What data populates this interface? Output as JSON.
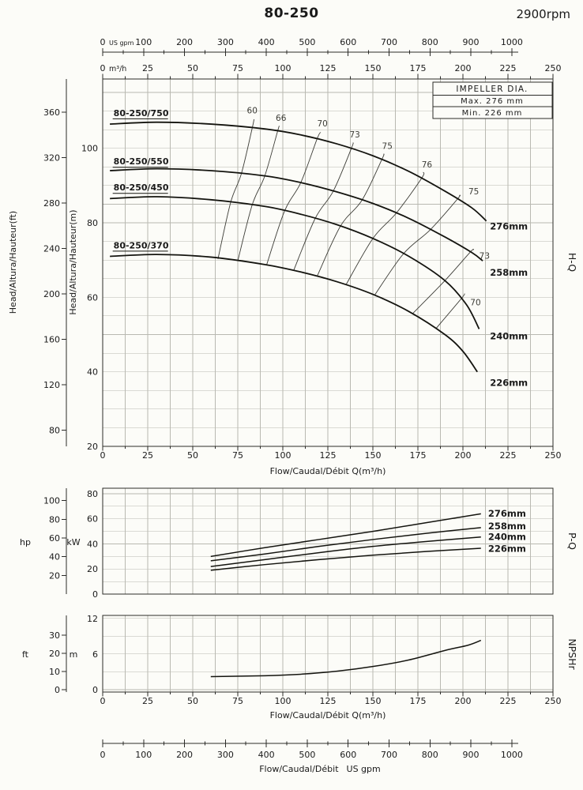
{
  "header": {
    "title": "80-250",
    "rpm": "2900rpm"
  },
  "impeller_box": {
    "title": "IMPELLER DIA.",
    "max": "Max. 276 mm",
    "min": "Min. 226 mm"
  },
  "section_labels": {
    "hq": "H-Q",
    "pq": "P-Q",
    "npsh": "NPSHr"
  },
  "top_axis": {
    "gpm": {
      "unit": "US gpm",
      "ticks": [
        0,
        100,
        200,
        300,
        400,
        500,
        600,
        700,
        800,
        900,
        1000
      ],
      "minor_step": 50
    },
    "m3h": {
      "unit": "m³/h",
      "ticks": [
        0,
        25,
        50,
        75,
        100,
        125,
        150,
        175,
        200,
        225,
        250
      ],
      "minor_step": 12.5
    }
  },
  "bottom_axis": {
    "title": "Flow/Caudal/Débit",
    "unit": "US gpm",
    "ticks": [
      0,
      100,
      200,
      300,
      400,
      500,
      600,
      700,
      800,
      900,
      1000
    ],
    "minor_step": 50
  },
  "chart_data": [
    {
      "id": "hq",
      "type": "line",
      "name": "H-Q",
      "xlabel": "Flow/Caudal/Débit Q(m³/h)",
      "ylabel_ft": "Head/Altura/Hauteur(ft)",
      "ylabel_m": "Head/Altura/Hauteur(m)",
      "xlim": [
        0,
        250
      ],
      "ylim_m": [
        20,
        118.6
      ],
      "xticks": [
        0,
        25,
        50,
        75,
        100,
        125,
        150,
        175,
        200,
        225,
        250
      ],
      "yticks_m": [
        20,
        40,
        60,
        80,
        100
      ],
      "yticks_ft": [
        80,
        120,
        160,
        200,
        240,
        280,
        320,
        360
      ],
      "grid_step_x": 12.5,
      "grid_step_y": 5,
      "series": [
        {
          "name": "80-250/750",
          "impeller": "276mm",
          "label_at": [
            6,
            109.5
          ],
          "end_label_at": [
            215,
            79
          ],
          "points": [
            [
              4,
              106.5
            ],
            [
              30,
              107
            ],
            [
              60,
              106.5
            ],
            [
              90,
              105.2
            ],
            [
              110,
              103.6
            ],
            [
              130,
              101.2
            ],
            [
              150,
              98
            ],
            [
              170,
              93.8
            ],
            [
              190,
              88.5
            ],
            [
              205,
              84
            ],
            [
              213,
              80.5
            ]
          ]
        },
        {
          "name": "80-250/550",
          "impeller": "258mm",
          "label_at": [
            6,
            96.5
          ],
          "end_label_at": [
            215,
            66.5
          ],
          "points": [
            [
              4,
              94
            ],
            [
              30,
              94.5
            ],
            [
              60,
              94
            ],
            [
              90,
              92.6
            ],
            [
              110,
              90.8
            ],
            [
              130,
              88.3
            ],
            [
              150,
              85.2
            ],
            [
              170,
              81.2
            ],
            [
              190,
              76.2
            ],
            [
              205,
              72
            ],
            [
              211,
              69.8
            ]
          ]
        },
        {
          "name": "80-250/450",
          "impeller": "240mm",
          "label_at": [
            6,
            89.5
          ],
          "end_label_at": [
            215,
            49.5
          ],
          "points": [
            [
              4,
              86.5
            ],
            [
              30,
              87
            ],
            [
              60,
              86.2
            ],
            [
              90,
              84.4
            ],
            [
              110,
              82.3
            ],
            [
              130,
              79.5
            ],
            [
              150,
              75.8
            ],
            [
              170,
              71
            ],
            [
              190,
              64.5
            ],
            [
              202,
              58
            ],
            [
              209,
              51.5
            ]
          ]
        },
        {
          "name": "80-250/370",
          "impeller": "226mm",
          "label_at": [
            6,
            74
          ],
          "end_label_at": [
            215,
            37
          ],
          "points": [
            [
              4,
              71
            ],
            [
              30,
              71.5
            ],
            [
              60,
              70.8
            ],
            [
              90,
              68.8
            ],
            [
              110,
              66.8
            ],
            [
              130,
              64.2
            ],
            [
              150,
              60.8
            ],
            [
              170,
              56.2
            ],
            [
              190,
              50
            ],
            [
              200,
              45.5
            ],
            [
              208,
              40
            ]
          ]
        }
      ],
      "efficiency_lines": [
        {
          "label": "60",
          "label_at": [
            83,
            110
          ],
          "points": [
            [
              84,
              107.8
            ],
            [
              83,
              105.4
            ],
            [
              77,
              93.2
            ],
            [
              71,
              85.4
            ],
            [
              64,
              70.3
            ]
          ]
        },
        {
          "label": "66",
          "label_at": [
            99,
            108
          ],
          "points": [
            [
              98,
              106
            ],
            [
              97,
              104.4
            ],
            [
              90,
              92.6
            ],
            [
              83,
              84.8
            ],
            [
              75,
              69.8
            ]
          ]
        },
        {
          "label": "70",
          "label_at": [
            122,
            106.5
          ],
          "points": [
            [
              121,
              104.3
            ],
            [
              119,
              102.5
            ],
            [
              110,
              90.8
            ],
            [
              101,
              83.2
            ],
            [
              91,
              68.7
            ]
          ]
        },
        {
          "label": "73",
          "label_at": [
            140,
            103.5
          ],
          "points": [
            [
              139,
              101.5
            ],
            [
              138,
              99.9
            ],
            [
              128,
              88.5
            ],
            [
              118,
              81.2
            ],
            [
              106,
              67.2
            ]
          ]
        },
        {
          "label": "75",
          "label_at": [
            158,
            100.5
          ],
          "points": [
            [
              156,
              98.5
            ],
            [
              155,
              97
            ],
            [
              144,
              86.1
            ],
            [
              132,
              79.1
            ],
            [
              119,
              65.6
            ]
          ]
        },
        {
          "label": "76",
          "label_at": [
            180,
            95.5
          ],
          "points": [
            [
              178,
              93.6
            ],
            [
              177,
              91.9
            ],
            [
              163,
              82.6
            ],
            [
              150,
              75.8
            ],
            [
              135,
              63.3
            ]
          ]
        },
        {
          "label": "75",
          "label_at": [
            206,
            88.3
          ],
          "points": [
            [
              198,
              87.4
            ],
            [
              197,
              86.4
            ],
            [
              182,
              78.2
            ],
            [
              167,
              71.7
            ],
            [
              151,
              60.6
            ]
          ]
        },
        {
          "label": "73",
          "label_at": [
            212,
            71
          ],
          "points": [
            [
              206,
              72.8
            ],
            [
              204,
              72.1
            ],
            [
              190,
              64.5
            ],
            [
              172,
              55.6
            ]
          ]
        },
        {
          "label": "70",
          "label_at": [
            207,
            58.5
          ],
          "points": [
            [
              201,
              61
            ],
            [
              199,
              59.6
            ],
            [
              185,
              51.6
            ]
          ]
        }
      ]
    },
    {
      "id": "pq",
      "type": "line",
      "name": "P-Q",
      "ylabel_hp": "hp",
      "ylabel_kw": "kW",
      "xlim": [
        0,
        250
      ],
      "ylim_kw": [
        0,
        84.4
      ],
      "yticks_kw": [
        0,
        20,
        40,
        60,
        80
      ],
      "yticks_hp": [
        20,
        40,
        60,
        80,
        100
      ],
      "grid_step_x": 12.5,
      "grid_step_y": 10,
      "series": [
        {
          "name": "276mm",
          "label_at": [
            214,
            64
          ],
          "points": [
            [
              60,
              30
            ],
            [
              90,
              37
            ],
            [
              120,
              43.5
            ],
            [
              150,
              50
            ],
            [
              180,
              57
            ],
            [
              210,
              64
            ]
          ]
        },
        {
          "name": "258mm",
          "label_at": [
            214,
            54
          ],
          "points": [
            [
              60,
              26.5
            ],
            [
              90,
              32
            ],
            [
              120,
              38
            ],
            [
              150,
              43.5
            ],
            [
              180,
              48.5
            ],
            [
              210,
              53
            ]
          ]
        },
        {
          "name": "240mm",
          "label_at": [
            214,
            45.5
          ],
          "points": [
            [
              60,
              22
            ],
            [
              90,
              27.5
            ],
            [
              120,
              33
            ],
            [
              150,
              38
            ],
            [
              180,
              42
            ],
            [
              210,
              45.5
            ]
          ]
        },
        {
          "name": "226mm",
          "label_at": [
            214,
            36
          ],
          "points": [
            [
              60,
              19
            ],
            [
              90,
              23.5
            ],
            [
              120,
              27.5
            ],
            [
              150,
              31
            ],
            [
              180,
              34
            ],
            [
              210,
              36.5
            ]
          ]
        }
      ]
    },
    {
      "id": "npsh",
      "type": "line",
      "name": "NPSHr",
      "xlabel": "Flow/Caudal/Débit Q(m³/h)",
      "ylabel_ft": "ft",
      "ylabel_m": "m",
      "xlim": [
        0,
        250
      ],
      "ylim_m": [
        -0.4,
        12.5
      ],
      "xticks": [
        0,
        25,
        50,
        75,
        100,
        125,
        150,
        175,
        200,
        225,
        250
      ],
      "yticks_m": [
        0,
        6,
        12
      ],
      "yticks_ft": [
        0,
        10,
        20,
        30
      ],
      "grid_step_x": 12.5,
      "grid_step_y": 3,
      "series": [
        {
          "name": "NPSHr",
          "points": [
            [
              60,
              2.2
            ],
            [
              90,
              2.35
            ],
            [
              110,
              2.6
            ],
            [
              130,
              3.1
            ],
            [
              150,
              3.9
            ],
            [
              170,
              5
            ],
            [
              190,
              6.6
            ],
            [
              203,
              7.5
            ],
            [
              210,
              8.3
            ]
          ]
        }
      ]
    }
  ]
}
